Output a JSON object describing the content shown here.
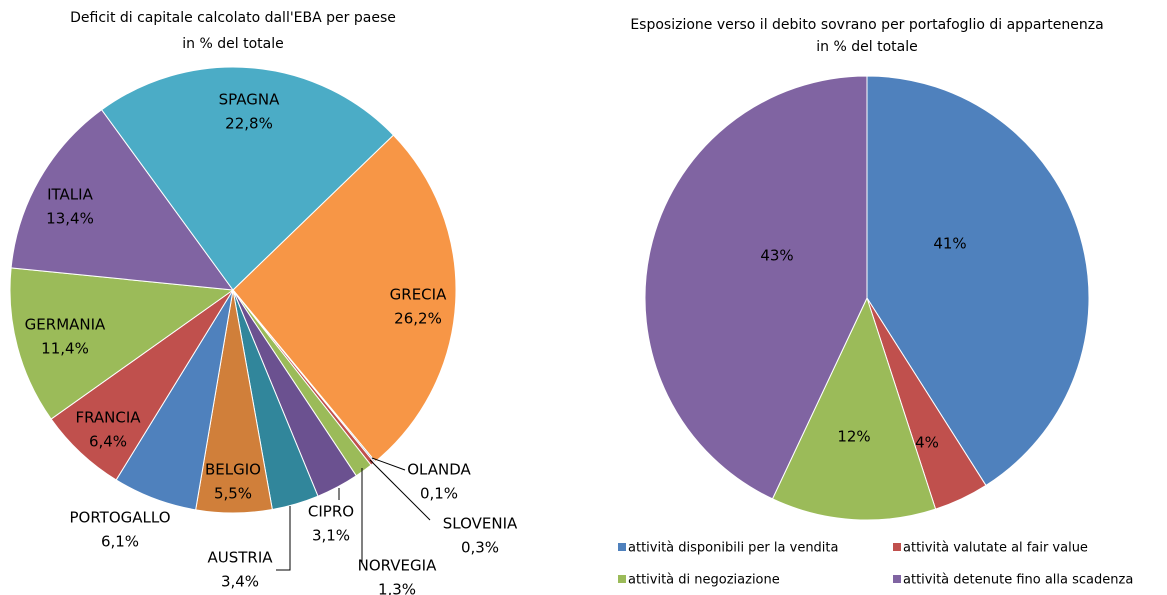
{
  "chart_data": [
    {
      "type": "pie",
      "title": "Deficit di capitale calcolato dall'EBA per paese",
      "subtitle": "in % del totale",
      "categories": [
        "GRECIA",
        "OLANDA",
        "SLOVENIA",
        "NORVEGIA",
        "CIPRO",
        "AUSTRIA",
        "BELGIO",
        "PORTOGALLO",
        "FRANCIA",
        "GERMANIA",
        "ITALIA",
        "SPAGNA"
      ],
      "values": [
        26.2,
        0.1,
        0.3,
        1.3,
        3.1,
        3.4,
        5.5,
        6.1,
        6.4,
        11.4,
        13.4,
        22.8
      ],
      "value_labels": [
        "26,2%",
        "0,1%",
        "0,3%",
        "1,3%",
        "3,1%",
        "3,4%",
        "5,5%",
        "6,1%",
        "6,4%",
        "11,4%",
        "13,4%",
        "22,8%"
      ],
      "colors": [
        "#f79646",
        "#4f81bd",
        "#c0504d",
        "#9bbb59",
        "#6b5190",
        "#31869b",
        "#d07f3a",
        "#4f81bd",
        "#c0504d",
        "#9bbb59",
        "#8064a2",
        "#4bacc6"
      ]
    },
    {
      "type": "pie",
      "title": "Esposizione verso il debito sovrano per portafoglio di appartenenza",
      "subtitle": "in % del totale",
      "categories": [
        "attività disponibili per la vendita",
        "attività valutate al fair value",
        "attività di negoziazione",
        "attività detenute fino alla scadenza"
      ],
      "values": [
        41,
        4,
        12,
        43
      ],
      "value_labels": [
        "41%",
        "4%",
        "12%",
        "43%"
      ],
      "colors": [
        "#4f81bd",
        "#c0504d",
        "#9bbb59",
        "#8064a2"
      ],
      "legend": "bottom"
    }
  ]
}
